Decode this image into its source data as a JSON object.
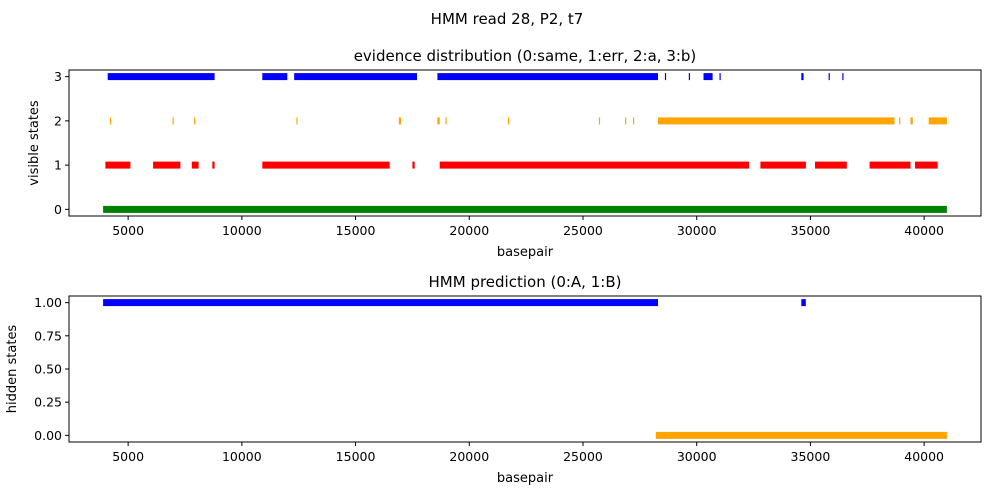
{
  "figure": {
    "suptitle": "HMM read 28, P2, t7"
  },
  "colors": {
    "same": "#008000",
    "err": "#ff0000",
    "a": "#ffa500",
    "b": "#0000ff"
  },
  "chart_data": [
    {
      "type": "scatter",
      "title": "evidence distribution (0:same, 1:err, 2:a, 3:b)",
      "xlabel": "basepair",
      "ylabel": "visible states",
      "xlim": [
        2400,
        42500
      ],
      "ylim": [
        -0.15,
        3.15
      ],
      "xticks": [
        5000,
        10000,
        15000,
        20000,
        25000,
        30000,
        35000,
        40000
      ],
      "yticks": [
        0,
        1,
        2,
        3
      ],
      "series": [
        {
          "key": "same",
          "y": 0,
          "spans": [
            [
              3900,
              41000
            ]
          ]
        },
        {
          "key": "err",
          "y": 1,
          "spans": [
            [
              4000,
              5100
            ],
            [
              6100,
              7300
            ],
            [
              7800,
              8100
            ],
            [
              8700,
              8800
            ],
            [
              10900,
              16500
            ],
            [
              17500,
              17600
            ],
            [
              18700,
              32300
            ],
            [
              32800,
              34800
            ],
            [
              35200,
              36600
            ],
            [
              37600,
              39400
            ],
            [
              39600,
              40600
            ]
          ]
        },
        {
          "key": "a",
          "y": 2,
          "spans": [
            [
              4200,
              4220
            ],
            [
              6950,
              6970
            ],
            [
              7900,
              7920
            ],
            [
              12400,
              12420
            ],
            [
              16900,
              17000
            ],
            [
              18600,
              18700
            ],
            [
              18950,
              18970
            ],
            [
              21700,
              21720
            ],
            [
              25700,
              25720
            ],
            [
              26850,
              26870
            ],
            [
              27200,
              27220
            ],
            [
              28300,
              38700
            ],
            [
              38900,
              38920
            ],
            [
              39400,
              39500
            ],
            [
              40200,
              41000
            ]
          ]
        },
        {
          "key": "b",
          "y": 3,
          "spans": [
            [
              4100,
              8800
            ],
            [
              10900,
              12000
            ],
            [
              12300,
              17700
            ],
            [
              18600,
              28300
            ],
            [
              28600,
              28620
            ],
            [
              29650,
              29670
            ],
            [
              30300,
              30700
            ],
            [
              31000,
              31020
            ],
            [
              34600,
              34700
            ],
            [
              35800,
              35820
            ],
            [
              36400,
              36420
            ]
          ]
        }
      ]
    },
    {
      "type": "scatter",
      "title": "HMM prediction (0:A, 1:B)",
      "xlabel": "basepair",
      "ylabel": "hidden states",
      "xlim": [
        2400,
        42500
      ],
      "ylim": [
        -0.05,
        1.05
      ],
      "xticks": [
        5000,
        10000,
        15000,
        20000,
        25000,
        30000,
        35000,
        40000
      ],
      "yticks": [
        0.0,
        0.25,
        0.5,
        0.75,
        1.0
      ],
      "series": [
        {
          "key": "b",
          "y": 1,
          "spans": [
            [
              3900,
              28300
            ],
            [
              34600,
              34800
            ]
          ]
        },
        {
          "key": "a",
          "y": 0,
          "spans": [
            [
              28200,
              41000
            ]
          ]
        }
      ]
    }
  ]
}
